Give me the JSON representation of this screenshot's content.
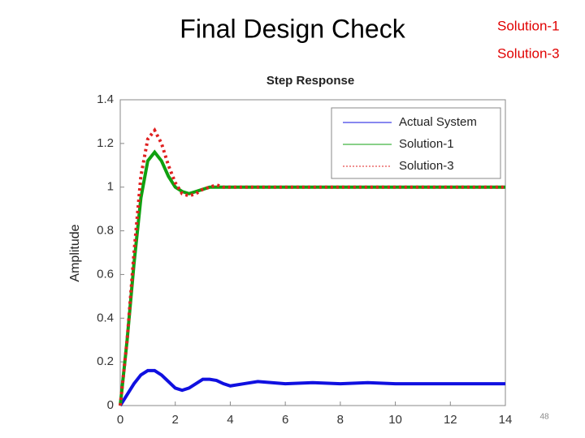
{
  "slide": {
    "title": "Final Design Check",
    "labels": [
      "Solution-1",
      "Solution-3"
    ],
    "page_number": "48"
  },
  "chart_data": {
    "type": "line",
    "title": "Step Response",
    "y_label": "Amplitude",
    "x": [
      0,
      0.25,
      0.5,
      0.75,
      1,
      1.25,
      1.5,
      1.75,
      2,
      2.25,
      2.5,
      2.75,
      3,
      3.25,
      3.5,
      3.75,
      4,
      4.5,
      5,
      5.5,
      6,
      7,
      8,
      9,
      10,
      11,
      12,
      13,
      14
    ],
    "series": [
      {
        "name": "Actual System",
        "color": "#1010e0",
        "style": "solid",
        "values": [
          0,
          0.05,
          0.1,
          0.14,
          0.16,
          0.16,
          0.14,
          0.11,
          0.08,
          0.07,
          0.08,
          0.1,
          0.12,
          0.12,
          0.115,
          0.1,
          0.09,
          0.1,
          0.11,
          0.105,
          0.1,
          0.105,
          0.1,
          0.105,
          0.1,
          0.1,
          0.1,
          0.1,
          0.1
        ]
      },
      {
        "name": "Solution-1",
        "color": "#10a010",
        "style": "solid",
        "values": [
          0,
          0.3,
          0.65,
          0.95,
          1.12,
          1.16,
          1.12,
          1.05,
          1.0,
          0.98,
          0.97,
          0.98,
          0.99,
          1.0,
          1.0,
          1.0,
          1.0,
          1,
          1,
          1,
          1,
          1,
          1,
          1,
          1,
          1,
          1,
          1,
          1
        ]
      },
      {
        "name": "Solution-3",
        "color": "#e02020",
        "style": "dotted",
        "values": [
          0,
          0.3,
          0.7,
          1.05,
          1.22,
          1.26,
          1.2,
          1.1,
          1.02,
          0.97,
          0.96,
          0.97,
          0.99,
          1.0,
          1.01,
          1.0,
          1.0,
          1,
          1,
          1,
          1,
          1,
          1,
          1,
          1,
          1,
          1,
          1,
          1
        ]
      }
    ],
    "xlim": [
      0,
      14
    ],
    "xticks": [
      0,
      2,
      4,
      6,
      8,
      10,
      12,
      14
    ],
    "ylim": [
      0,
      1.4
    ],
    "yticks": [
      0,
      0.2,
      0.4,
      0.6,
      0.8,
      1,
      1.2,
      1.4
    ],
    "legend": "top-right",
    "grid": false
  }
}
